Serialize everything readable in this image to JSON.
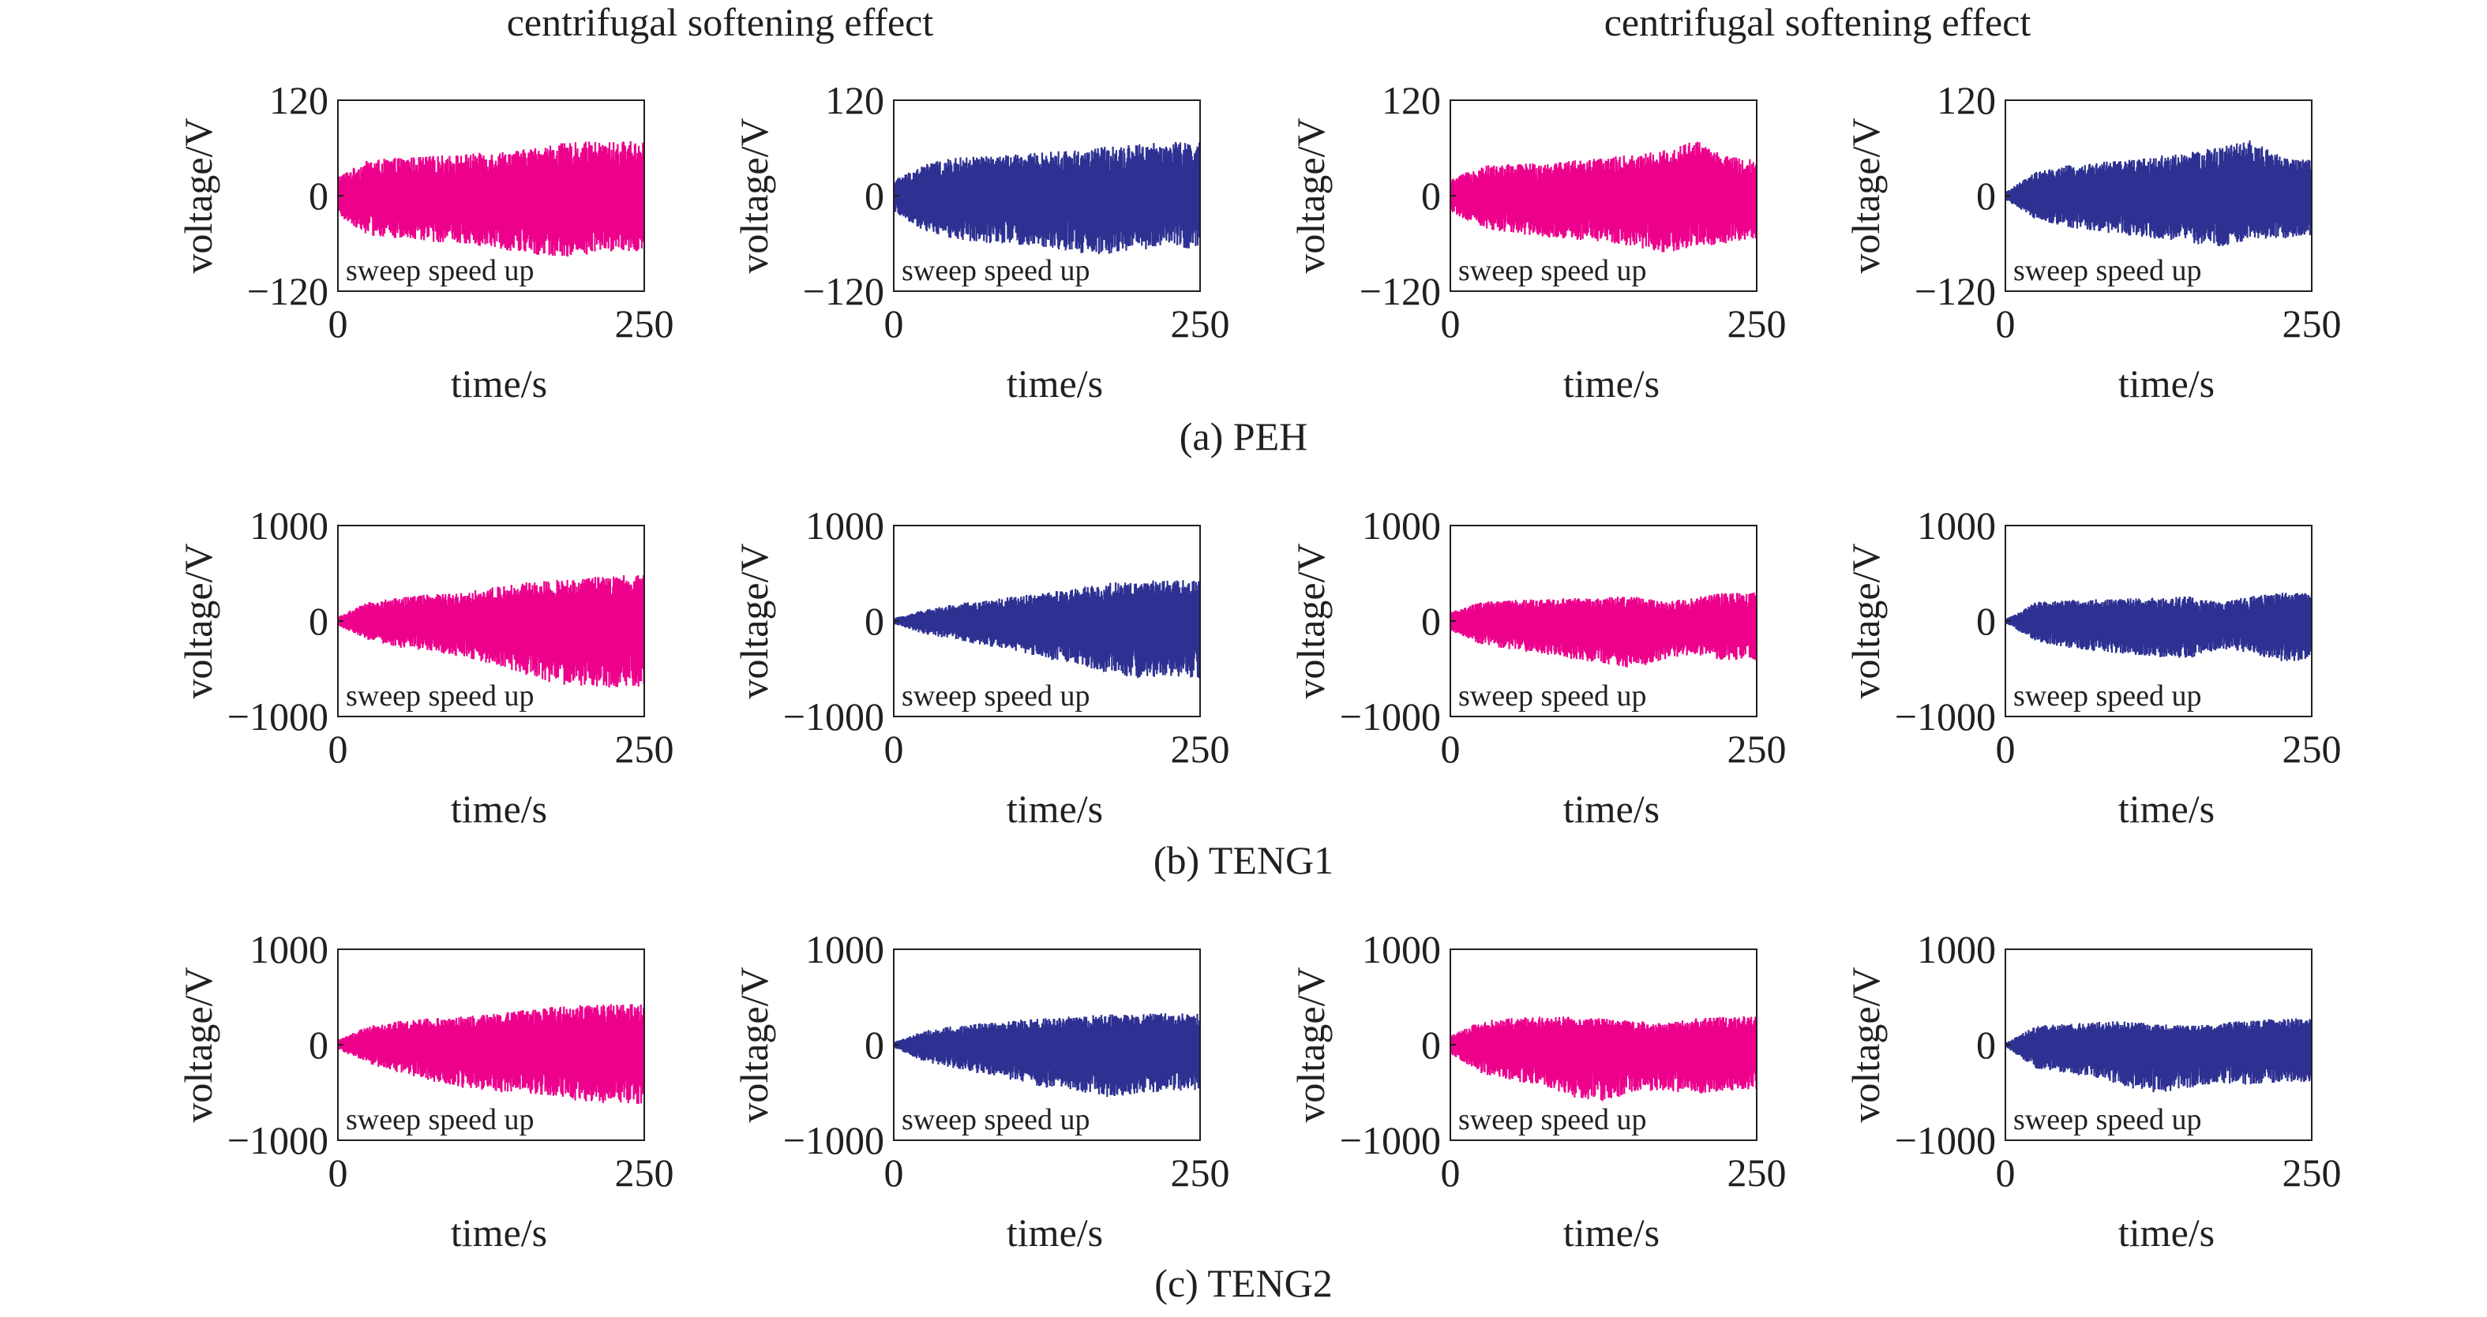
{
  "figure": {
    "headers": [
      "centrifugal softening effect",
      "centrifugal softening effect"
    ],
    "captions": [
      "(a) PEH",
      "(b) TENG1",
      "(c) TENG2"
    ],
    "colors": {
      "pink": "#ec008c",
      "navy": "#2e3192",
      "axis": "#231f20"
    }
  },
  "chart_data": [
    {
      "type": "line",
      "row": 0,
      "col": 0,
      "xlabel": "time/s",
      "ylabel": "voltage/V",
      "xlim": [
        0,
        250
      ],
      "ylim": [
        -120,
        120
      ],
      "x_ticks": [
        "0",
        "250"
      ],
      "y_ticks": [
        "120",
        "0",
        "−120"
      ],
      "annotation": "sweep speed up",
      "color": "#ec008c",
      "envelope": {
        "x": [
          0,
          25,
          50,
          75,
          100,
          125,
          150,
          175,
          200,
          225,
          250
        ],
        "upper": [
          25,
          45,
          48,
          50,
          52,
          55,
          58,
          65,
          68,
          68,
          70
        ],
        "lower": [
          -25,
          -50,
          -55,
          -58,
          -60,
          -65,
          -72,
          -78,
          -75,
          -70,
          -70
        ]
      }
    },
    {
      "type": "line",
      "row": 0,
      "col": 1,
      "xlabel": "time/s",
      "ylabel": "voltage/V",
      "xlim": [
        0,
        250
      ],
      "ylim": [
        -120,
        120
      ],
      "x_ticks": [
        "0",
        "250"
      ],
      "y_ticks": [
        "120",
        "0",
        "−120"
      ],
      "annotation": "sweep speed up",
      "color": "#2e3192",
      "envelope": {
        "x": [
          0,
          25,
          50,
          75,
          100,
          125,
          150,
          175,
          200,
          225,
          250
        ],
        "upper": [
          20,
          40,
          48,
          50,
          52,
          55,
          58,
          62,
          65,
          68,
          68
        ],
        "lower": [
          -20,
          -45,
          -55,
          -60,
          -62,
          -65,
          -72,
          -75,
          -70,
          -60,
          -72
        ]
      }
    },
    {
      "type": "line",
      "row": 0,
      "col": 2,
      "xlabel": "time/s",
      "ylabel": "voltage/V",
      "xlim": [
        0,
        250
      ],
      "ylim": [
        -120,
        120
      ],
      "x_ticks": [
        "0",
        "250"
      ],
      "y_ticks": [
        "120",
        "0",
        "−120"
      ],
      "annotation": "sweep speed up",
      "color": "#ec008c",
      "envelope": {
        "x": [
          0,
          25,
          50,
          75,
          100,
          125,
          150,
          175,
          200,
          225,
          250
        ],
        "upper": [
          20,
          38,
          40,
          42,
          45,
          48,
          52,
          58,
          70,
          50,
          45
        ],
        "lower": [
          -20,
          -40,
          -48,
          -52,
          -55,
          -58,
          -65,
          -72,
          -65,
          -60,
          -55
        ]
      }
    },
    {
      "type": "line",
      "row": 0,
      "col": 3,
      "xlabel": "time/s",
      "ylabel": "voltage/V",
      "xlim": [
        0,
        250
      ],
      "ylim": [
        -120,
        120
      ],
      "x_ticks": [
        "0",
        "250"
      ],
      "y_ticks": [
        "120",
        "0",
        "−120"
      ],
      "annotation": "sweep speed up",
      "color": "#2e3192",
      "envelope": {
        "x": [
          0,
          25,
          50,
          75,
          100,
          125,
          150,
          175,
          200,
          225,
          250
        ],
        "upper": [
          5,
          30,
          38,
          42,
          45,
          50,
          55,
          62,
          70,
          50,
          45
        ],
        "lower": [
          -5,
          -30,
          -40,
          -45,
          -50,
          -55,
          -60,
          -65,
          -55,
          -55,
          -50
        ]
      }
    },
    {
      "type": "line",
      "row": 1,
      "col": 0,
      "xlabel": "time/s",
      "ylabel": "voltage/V",
      "xlim": [
        0,
        250
      ],
      "ylim": [
        -1000,
        1000
      ],
      "x_ticks": [
        "0",
        "250"
      ],
      "y_ticks": [
        "1000",
        "0",
        "−1000"
      ],
      "annotation": "sweep speed up",
      "color": "#ec008c",
      "envelope": {
        "x": [
          0,
          25,
          50,
          75,
          100,
          125,
          150,
          175,
          200,
          225,
          250
        ],
        "upper": [
          50,
          200,
          250,
          280,
          300,
          350,
          400,
          430,
          450,
          480,
          480
        ],
        "lower": [
          -50,
          -200,
          -280,
          -320,
          -380,
          -450,
          -550,
          -650,
          -700,
          -700,
          -700
        ]
      }
    },
    {
      "type": "line",
      "row": 1,
      "col": 1,
      "xlabel": "time/s",
      "ylabel": "voltage/V",
      "xlim": [
        0,
        250
      ],
      "ylim": [
        -1000,
        1000
      ],
      "x_ticks": [
        "0",
        "250"
      ],
      "y_ticks": [
        "1000",
        "0",
        "−1000"
      ],
      "annotation": "sweep speed up",
      "color": "#2e3192",
      "envelope": {
        "x": [
          0,
          25,
          50,
          75,
          100,
          125,
          150,
          175,
          200,
          225,
          250
        ],
        "upper": [
          30,
          120,
          180,
          220,
          260,
          300,
          350,
          400,
          420,
          430,
          430
        ],
        "lower": [
          -30,
          -140,
          -200,
          -260,
          -320,
          -400,
          -450,
          -550,
          -600,
          -580,
          -600
        ]
      }
    },
    {
      "type": "line",
      "row": 1,
      "col": 2,
      "xlabel": "time/s",
      "ylabel": "voltage/V",
      "xlim": [
        0,
        250
      ],
      "ylim": [
        -1000,
        1000
      ],
      "x_ticks": [
        "0",
        "250"
      ],
      "y_ticks": [
        "1000",
        "0",
        "−1000"
      ],
      "annotation": "sweep speed up",
      "color": "#ec008c",
      "envelope": {
        "x": [
          0,
          25,
          50,
          75,
          100,
          125,
          150,
          175,
          200,
          225,
          250
        ],
        "upper": [
          100,
          200,
          220,
          230,
          240,
          250,
          260,
          200,
          250,
          300,
          300
        ],
        "lower": [
          -100,
          -250,
          -300,
          -350,
          -400,
          -450,
          -500,
          -400,
          -350,
          -420,
          -420
        ]
      }
    },
    {
      "type": "line",
      "row": 1,
      "col": 3,
      "xlabel": "time/s",
      "ylabel": "voltage/V",
      "xlim": [
        0,
        250
      ],
      "ylim": [
        -1000,
        1000
      ],
      "x_ticks": [
        "0",
        "250"
      ],
      "y_ticks": [
        "1000",
        "0",
        "−1000"
      ],
      "annotation": "sweep speed up",
      "color": "#2e3192",
      "envelope": {
        "x": [
          0,
          25,
          50,
          75,
          100,
          125,
          150,
          175,
          200,
          225,
          250
        ],
        "upper": [
          20,
          200,
          220,
          230,
          240,
          250,
          260,
          200,
          260,
          300,
          300
        ],
        "lower": [
          -20,
          -220,
          -280,
          -320,
          -350,
          -380,
          -400,
          -300,
          -350,
          -420,
          -420
        ]
      }
    },
    {
      "type": "line",
      "row": 2,
      "col": 0,
      "xlabel": "time/s",
      "ylabel": "voltage/V",
      "xlim": [
        0,
        250
      ],
      "ylim": [
        -1000,
        1000
      ],
      "x_ticks": [
        "0",
        "250"
      ],
      "y_ticks": [
        "1000",
        "0",
        "−1000"
      ],
      "annotation": "sweep speed up",
      "color": "#ec008c",
      "envelope": {
        "x": [
          0,
          25,
          50,
          75,
          100,
          125,
          150,
          175,
          200,
          225,
          250
        ],
        "upper": [
          50,
          200,
          250,
          280,
          300,
          320,
          360,
          400,
          420,
          430,
          430
        ],
        "lower": [
          -50,
          -200,
          -300,
          -380,
          -450,
          -500,
          -500,
          -550,
          -600,
          -620,
          -620
        ]
      }
    },
    {
      "type": "line",
      "row": 2,
      "col": 1,
      "xlabel": "time/s",
      "ylabel": "voltage/V",
      "xlim": [
        0,
        250
      ],
      "ylim": [
        -1000,
        1000
      ],
      "x_ticks": [
        "0",
        "250"
      ],
      "y_ticks": [
        "1000",
        "0",
        "−1000"
      ],
      "annotation": "sweep speed up",
      "color": "#2e3192",
      "envelope": {
        "x": [
          0,
          25,
          50,
          75,
          100,
          125,
          150,
          175,
          200,
          225,
          250
        ],
        "upper": [
          30,
          150,
          200,
          230,
          260,
          280,
          300,
          320,
          330,
          330,
          330
        ],
        "lower": [
          -30,
          -180,
          -250,
          -320,
          -380,
          -450,
          -500,
          -550,
          -520,
          -480,
          -480
        ]
      }
    },
    {
      "type": "line",
      "row": 2,
      "col": 2,
      "xlabel": "time/s",
      "ylabel": "voltage/V",
      "xlim": [
        0,
        250
      ],
      "ylim": [
        -1000,
        1000
      ],
      "x_ticks": [
        "0",
        "250"
      ],
      "y_ticks": [
        "1000",
        "0",
        "−1000"
      ],
      "annotation": "sweep speed up",
      "color": "#ec008c",
      "envelope": {
        "x": [
          0,
          25,
          50,
          75,
          100,
          125,
          150,
          175,
          200,
          225,
          250
        ],
        "upper": [
          100,
          250,
          280,
          300,
          300,
          280,
          250,
          230,
          280,
          300,
          300
        ],
        "lower": [
          -100,
          -300,
          -380,
          -420,
          -550,
          -600,
          -500,
          -480,
          -520,
          -480,
          -480
        ]
      }
    },
    {
      "type": "line",
      "row": 2,
      "col": 3,
      "xlabel": "time/s",
      "ylabel": "voltage/V",
      "xlim": [
        0,
        250
      ],
      "ylim": [
        -1000,
        1000
      ],
      "x_ticks": [
        "0",
        "250"
      ],
      "y_ticks": [
        "1000",
        "0",
        "−1000"
      ],
      "annotation": "sweep speed up",
      "color": "#2e3192",
      "envelope": {
        "x": [
          0,
          25,
          50,
          75,
          100,
          125,
          150,
          175,
          200,
          225,
          250
        ],
        "upper": [
          20,
          200,
          220,
          240,
          250,
          220,
          200,
          230,
          260,
          280,
          280
        ],
        "lower": [
          -20,
          -250,
          -300,
          -350,
          -450,
          -520,
          -450,
          -400,
          -420,
          -400,
          -400
        ]
      }
    }
  ]
}
